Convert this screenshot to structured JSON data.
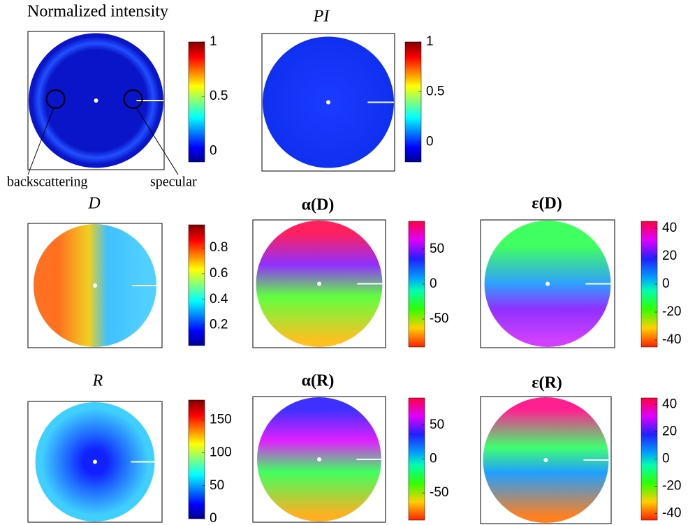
{
  "chart_data": [
    {
      "type": "heatmap",
      "title": "Normalized intensity",
      "colormap": "jet",
      "clim": [
        -0.1,
        1
      ],
      "cticks": [
        0,
        0.5,
        1
      ],
      "annotations": [
        "backscattering",
        "specular"
      ]
    },
    {
      "type": "heatmap",
      "title": "PI",
      "colormap": "jet",
      "clim": [
        -0.2,
        1
      ],
      "cticks": [
        0,
        0.5,
        1
      ]
    },
    {
      "type": "heatmap",
      "title": "D",
      "colormap": "jet",
      "clim": [
        0.04,
        0.98
      ],
      "cticks": [
        0.2,
        0.4,
        0.6,
        0.8
      ]
    },
    {
      "type": "heatmap",
      "title": "α(D)",
      "colormap": "hsv",
      "clim": [
        -90,
        90
      ],
      "cticks": [
        -50,
        0,
        50
      ]
    },
    {
      "type": "heatmap",
      "title": "ε(D)",
      "colormap": "hsv",
      "clim": [
        -45,
        45
      ],
      "cticks": [
        -40,
        -20,
        0,
        20,
        40
      ]
    },
    {
      "type": "heatmap",
      "title": "R",
      "colormap": "jet",
      "clim": [
        0,
        180
      ],
      "cticks": [
        0,
        50,
        100,
        150
      ]
    },
    {
      "type": "heatmap",
      "title": "α(R)",
      "colormap": "hsv",
      "clim": [
        -90,
        90
      ],
      "cticks": [
        -50,
        0,
        50
      ]
    },
    {
      "type": "heatmap",
      "title": "ε(R)",
      "colormap": "hsv",
      "clim": [
        -45,
        45
      ],
      "cticks": [
        -40,
        -20,
        0,
        20,
        40
      ]
    }
  ]
}
